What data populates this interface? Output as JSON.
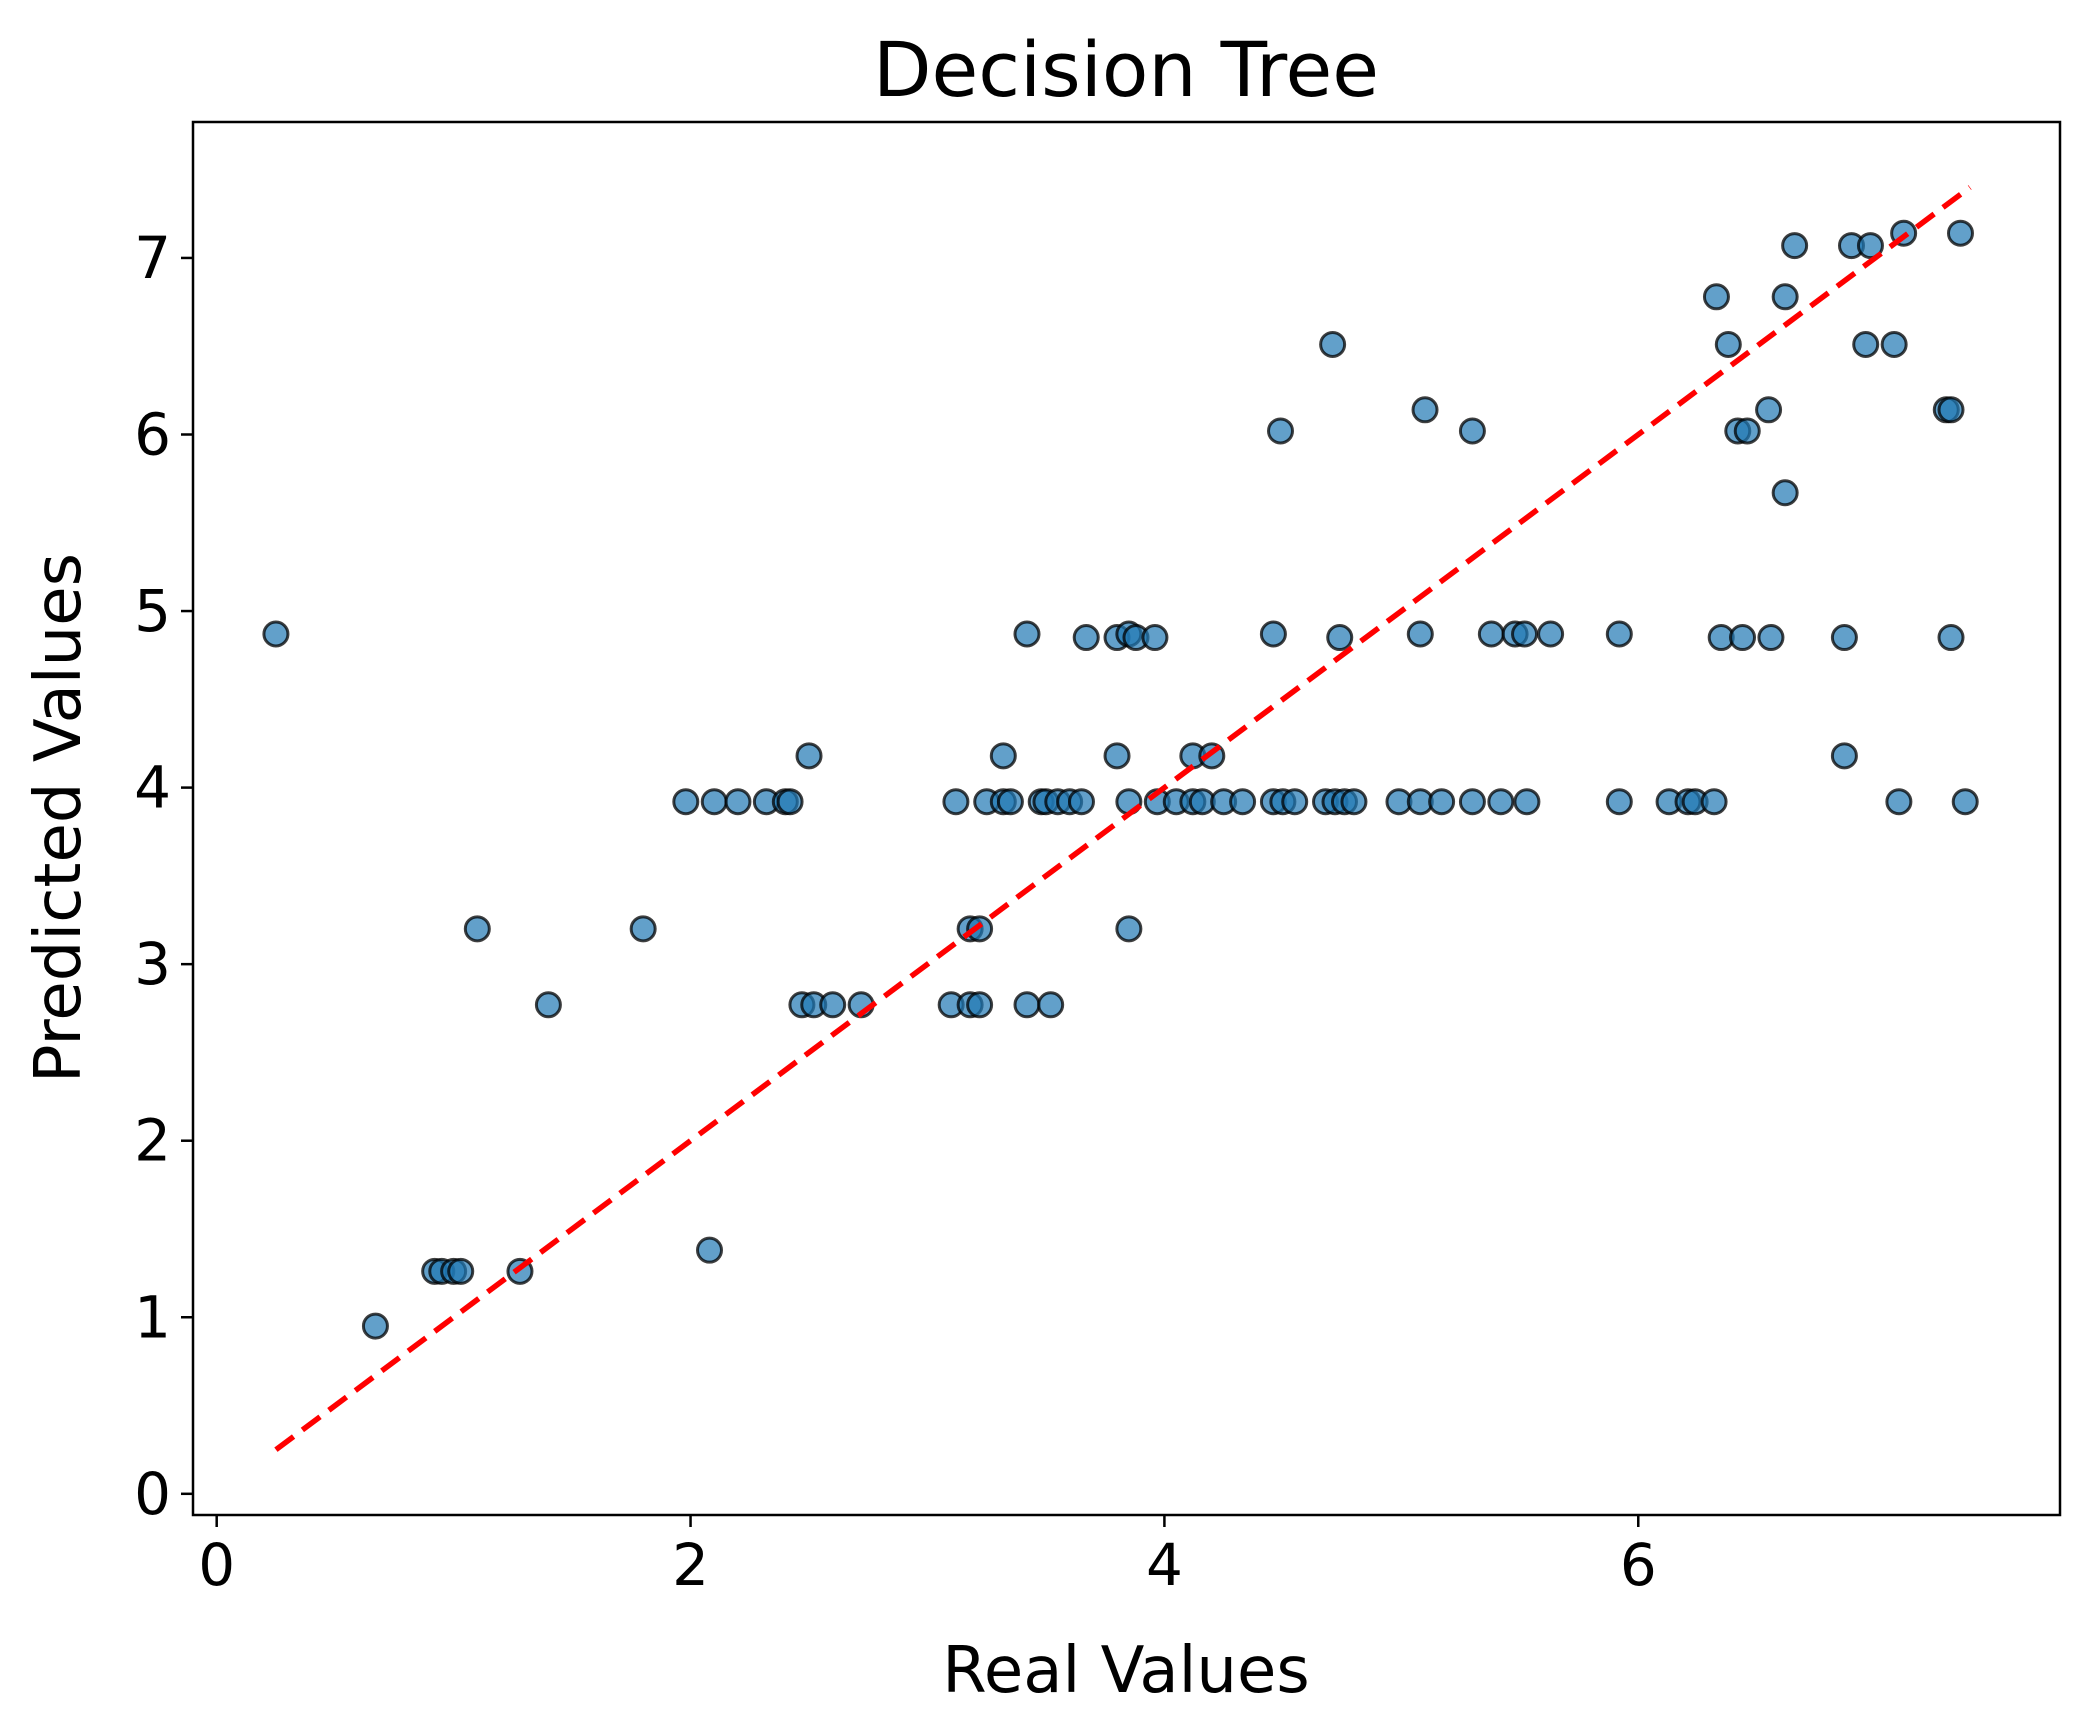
{
  "chart_data": {
    "type": "scatter",
    "title": "Decision Tree",
    "xlabel": "Real Values",
    "ylabel": "Predicted Values",
    "xlim": [
      -0.1,
      7.78
    ],
    "ylim": [
      -0.12,
      7.77
    ],
    "xticks": [
      0,
      2,
      4,
      6
    ],
    "yticks": [
      0,
      1,
      2,
      3,
      4,
      5,
      6,
      7
    ],
    "grid": false,
    "colors": {
      "marker_fill": "#1f77b4",
      "marker_edge": "#000000",
      "reference_line": "#ff0000"
    },
    "reference_line": {
      "x": [
        0.25,
        7.4
      ],
      "y": [
        0.25,
        7.4
      ],
      "style": "dashed"
    },
    "series": [
      {
        "points": [
          [
            0.25,
            4.87
          ],
          [
            0.67,
            0.95
          ],
          [
            0.92,
            1.26
          ],
          [
            0.95,
            1.26
          ],
          [
            1.0,
            1.26
          ],
          [
            1.03,
            1.26
          ],
          [
            1.28,
            1.26
          ],
          [
            1.1,
            3.2
          ],
          [
            1.4,
            2.77
          ],
          [
            1.8,
            3.2
          ],
          [
            1.98,
            3.92
          ],
          [
            2.1,
            3.92
          ],
          [
            2.2,
            3.92
          ],
          [
            2.32,
            3.92
          ],
          [
            2.4,
            3.92
          ],
          [
            2.42,
            3.92
          ],
          [
            2.08,
            1.38
          ],
          [
            2.5,
            4.18
          ],
          [
            2.47,
            2.77
          ],
          [
            2.52,
            2.77
          ],
          [
            2.6,
            2.77
          ],
          [
            2.72,
            2.77
          ],
          [
            3.1,
            2.77
          ],
          [
            3.18,
            2.77
          ],
          [
            3.22,
            2.77
          ],
          [
            3.42,
            2.77
          ],
          [
            3.52,
            2.77
          ],
          [
            3.18,
            3.2
          ],
          [
            3.22,
            3.2
          ],
          [
            3.85,
            3.2
          ],
          [
            3.12,
            3.92
          ],
          [
            3.25,
            3.92
          ],
          [
            3.32,
            3.92
          ],
          [
            3.35,
            3.92
          ],
          [
            3.48,
            3.92
          ],
          [
            3.5,
            3.92
          ],
          [
            3.55,
            3.92
          ],
          [
            3.6,
            3.92
          ],
          [
            3.65,
            3.92
          ],
          [
            3.85,
            3.92
          ],
          [
            3.97,
            3.92
          ],
          [
            4.05,
            3.92
          ],
          [
            4.12,
            3.92
          ],
          [
            4.16,
            3.92
          ],
          [
            4.25,
            3.92
          ],
          [
            4.33,
            3.92
          ],
          [
            4.46,
            3.92
          ],
          [
            4.5,
            3.92
          ],
          [
            4.55,
            3.92
          ],
          [
            4.68,
            3.92
          ],
          [
            4.72,
            3.92
          ],
          [
            4.76,
            3.92
          ],
          [
            4.8,
            3.92
          ],
          [
            4.99,
            3.92
          ],
          [
            5.08,
            3.92
          ],
          [
            5.17,
            3.92
          ],
          [
            5.3,
            3.92
          ],
          [
            5.42,
            3.92
          ],
          [
            5.53,
            3.92
          ],
          [
            5.92,
            3.92
          ],
          [
            6.13,
            3.92
          ],
          [
            6.21,
            3.92
          ],
          [
            6.24,
            3.92
          ],
          [
            6.32,
            3.92
          ],
          [
            7.1,
            3.92
          ],
          [
            7.38,
            3.92
          ],
          [
            3.32,
            4.18
          ],
          [
            3.8,
            4.18
          ],
          [
            4.12,
            4.18
          ],
          [
            4.2,
            4.18
          ],
          [
            6.87,
            4.18
          ],
          [
            3.42,
            4.87
          ],
          [
            3.67,
            4.85
          ],
          [
            3.8,
            4.85
          ],
          [
            3.85,
            4.87
          ],
          [
            3.88,
            4.85
          ],
          [
            3.96,
            4.85
          ],
          [
            4.46,
            4.87
          ],
          [
            4.74,
            4.85
          ],
          [
            5.08,
            4.87
          ],
          [
            5.38,
            4.87
          ],
          [
            5.48,
            4.87
          ],
          [
            5.52,
            4.87
          ],
          [
            5.63,
            4.87
          ],
          [
            5.92,
            4.87
          ],
          [
            6.35,
            4.85
          ],
          [
            6.44,
            4.85
          ],
          [
            6.56,
            4.85
          ],
          [
            6.87,
            4.85
          ],
          [
            7.32,
            4.85
          ],
          [
            4.49,
            6.02
          ],
          [
            5.1,
            6.14
          ],
          [
            5.3,
            6.02
          ],
          [
            4.71,
            6.51
          ],
          [
            6.33,
            6.78
          ],
          [
            6.38,
            6.51
          ],
          [
            6.42,
            6.02
          ],
          [
            6.46,
            6.02
          ],
          [
            6.55,
            6.14
          ],
          [
            6.62,
            5.67
          ],
          [
            6.62,
            6.78
          ],
          [
            6.66,
            7.07
          ],
          [
            6.9,
            7.07
          ],
          [
            6.98,
            7.07
          ],
          [
            6.96,
            6.51
          ],
          [
            7.08,
            6.51
          ],
          [
            7.12,
            7.14
          ],
          [
            7.3,
            6.14
          ],
          [
            7.32,
            6.14
          ],
          [
            7.36,
            7.14
          ]
        ]
      }
    ]
  }
}
